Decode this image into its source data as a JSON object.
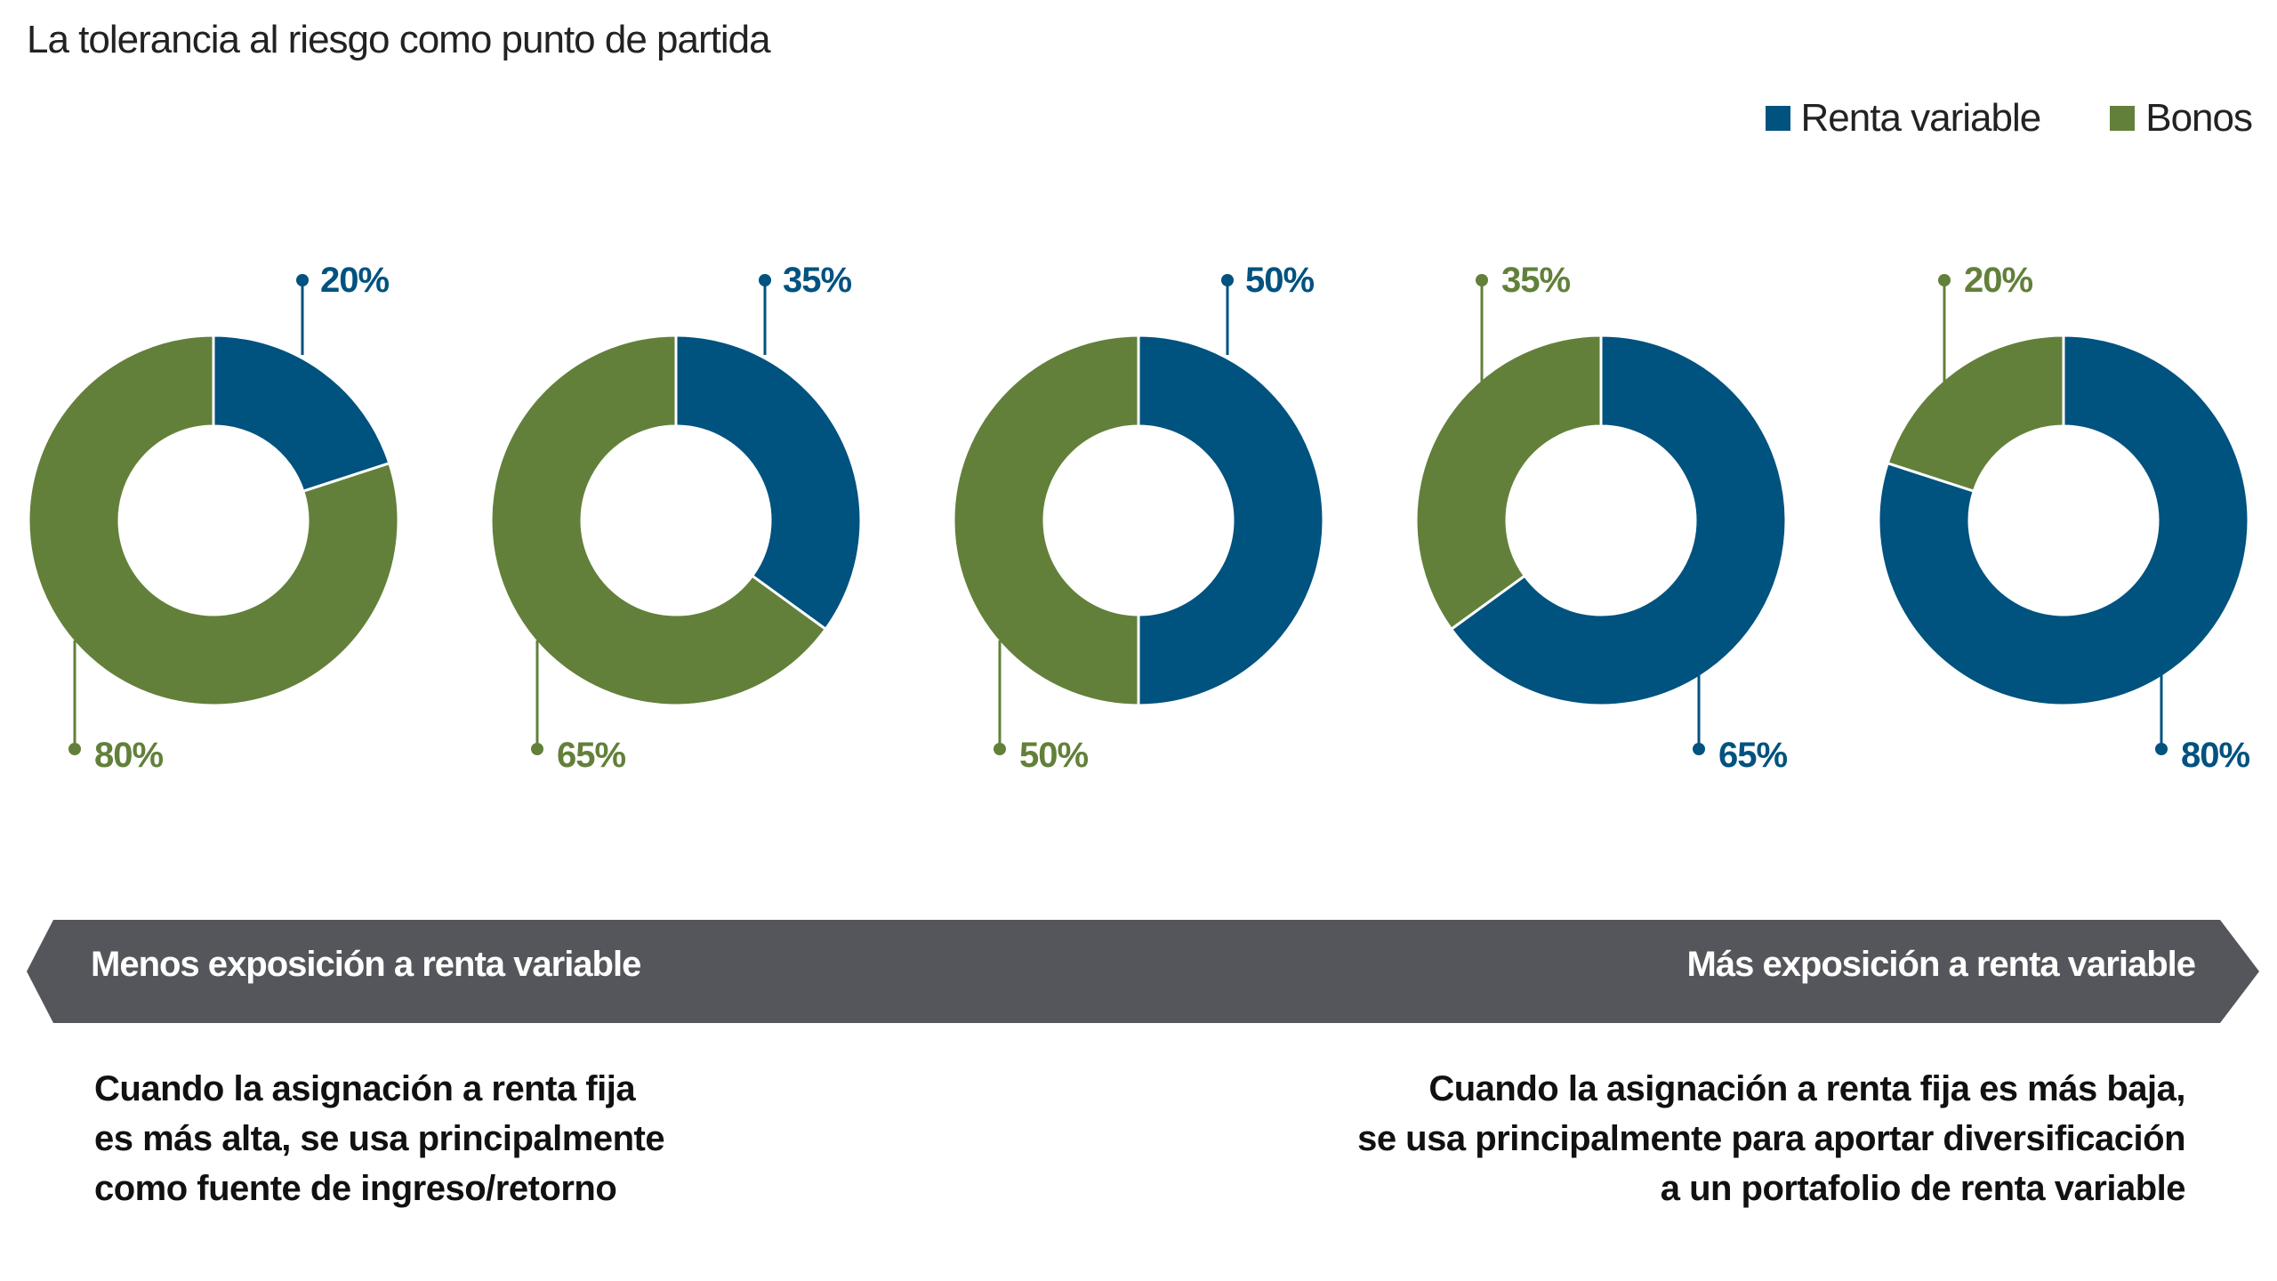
{
  "title": "La tolerancia al riesgo como punto de partida",
  "colors": {
    "renta_variable": "#00527f",
    "bonos": "#62803a",
    "arrow": "#54565b"
  },
  "chart_data": {
    "type": "pie",
    "title": "La tolerancia al riesgo como punto de partida",
    "legend": [
      "Renta variable",
      "Bonos"
    ],
    "legend_position": "top-right",
    "donuts": [
      {
        "renta_variable": 20,
        "bonos": 80,
        "renta_variable_label": "20%",
        "bonos_label": "80%"
      },
      {
        "renta_variable": 35,
        "bonos": 65,
        "renta_variable_label": "35%",
        "bonos_label": "65%"
      },
      {
        "renta_variable": 50,
        "bonos": 50,
        "renta_variable_label": "50%",
        "bonos_label": "50%"
      },
      {
        "renta_variable": 65,
        "bonos": 35,
        "renta_variable_label": "65%",
        "bonos_label": "35%"
      },
      {
        "renta_variable": 80,
        "bonos": 20,
        "renta_variable_label": "80%",
        "bonos_label": "20%"
      }
    ]
  },
  "arrow": {
    "left_label": "Menos exposición a renta variable",
    "right_label": "Más exposición a renta variable"
  },
  "notes": {
    "left": [
      "Cuando la asignación a renta fija",
      "es más alta, se usa principalmente",
      "como fuente de ingreso/retorno"
    ],
    "right": [
      "Cuando la asignación a renta fija es más baja,",
      "se usa principalmente para aportar diversificación",
      "a un portafolio de renta variable"
    ]
  }
}
